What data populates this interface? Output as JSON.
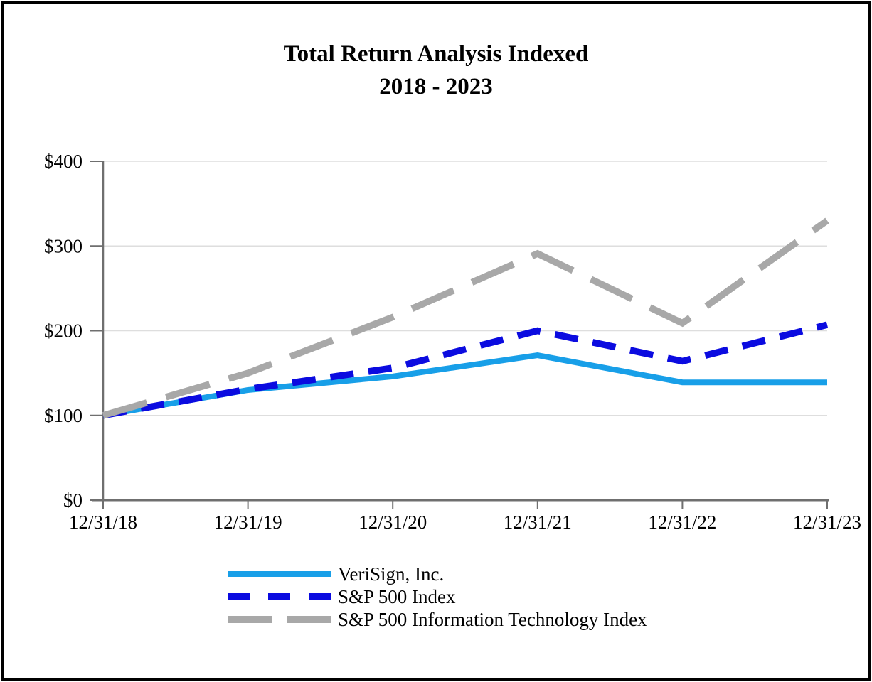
{
  "page": {
    "background": "#FFFFFF",
    "frame_color": "#000000"
  },
  "chart_data": {
    "type": "line",
    "title": "Total Return Analysis Indexed",
    "subtitle": "2018 - 2023",
    "categories": [
      "12/31/18",
      "12/31/19",
      "12/31/20",
      "12/31/21",
      "12/31/22",
      "12/31/23"
    ],
    "series": [
      {
        "name": "VeriSign, Inc.",
        "color": "#189FE8",
        "line_style": "solid",
        "values": [
          100,
          130,
          146,
          171,
          139,
          139
        ]
      },
      {
        "name": "S&P 500 Index",
        "color": "#0B0BE0",
        "line_style": "dashed",
        "values": [
          100,
          131,
          156,
          200,
          164,
          207
        ]
      },
      {
        "name": "S&P 500 Information Technology Index",
        "color": "#A8A8A8",
        "line_style": "long-dash",
        "values": [
          100,
          150,
          216,
          291,
          209,
          330
        ]
      }
    ],
    "y_axis": {
      "min": 0,
      "max": 400,
      "tick_step": 100,
      "tick_labels": [
        "$0",
        "$100",
        "$200",
        "$300",
        "$400"
      ],
      "prefix": "$"
    },
    "grid": "horizontal",
    "legend_position": "bottom-left",
    "axis_color": "#6F6F6F",
    "grid_color": "#DEDEDE"
  }
}
